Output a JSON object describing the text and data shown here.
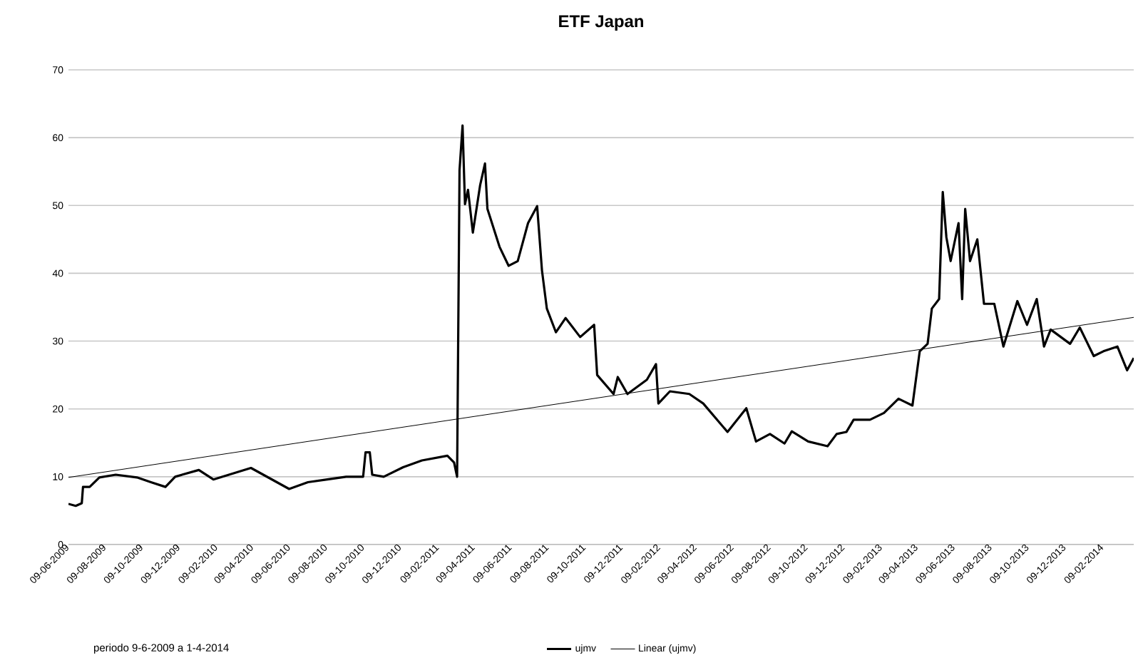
{
  "chart_data": {
    "type": "line",
    "title": "ETF Japan",
    "xlim": [
      "2009-06-09",
      "2014-04-01"
    ],
    "ylim": [
      0,
      70
    ],
    "yticks": [
      0,
      10,
      20,
      30,
      40,
      50,
      60,
      70
    ],
    "xticks": [
      {
        "value": "2009-06-09",
        "label": "09-06-2009"
      },
      {
        "value": "2009-08-09",
        "label": "09-08-2009"
      },
      {
        "value": "2009-10-09",
        "label": "09-10-2009"
      },
      {
        "value": "2009-12-09",
        "label": "09-12-2009"
      },
      {
        "value": "2010-02-09",
        "label": "09-02-2010"
      },
      {
        "value": "2010-04-09",
        "label": "09-04-2010"
      },
      {
        "value": "2010-06-09",
        "label": "09-06-2010"
      },
      {
        "value": "2010-08-09",
        "label": "09-08-2010"
      },
      {
        "value": "2010-10-09",
        "label": "09-10-2010"
      },
      {
        "value": "2010-12-09",
        "label": "09-12-2010"
      },
      {
        "value": "2011-02-09",
        "label": "09-02-2011"
      },
      {
        "value": "2011-04-09",
        "label": "09-04-2011"
      },
      {
        "value": "2011-06-09",
        "label": "09-06-2011"
      },
      {
        "value": "2011-08-09",
        "label": "09-08-2011"
      },
      {
        "value": "2011-10-09",
        "label": "09-10-2011"
      },
      {
        "value": "2011-12-09",
        "label": "09-12-2011"
      },
      {
        "value": "2012-02-09",
        "label": "09-02-2012"
      },
      {
        "value": "2012-04-09",
        "label": "09-04-2012"
      },
      {
        "value": "2012-06-09",
        "label": "09-06-2012"
      },
      {
        "value": "2012-08-09",
        "label": "09-08-2012"
      },
      {
        "value": "2012-10-09",
        "label": "09-10-2012"
      },
      {
        "value": "2012-12-09",
        "label": "09-12-2012"
      },
      {
        "value": "2013-02-09",
        "label": "09-02-2013"
      },
      {
        "value": "2013-04-09",
        "label": "09-04-2013"
      },
      {
        "value": "2013-06-09",
        "label": "09-06-2013"
      },
      {
        "value": "2013-08-09",
        "label": "09-08-2013"
      },
      {
        "value": "2013-10-09",
        "label": "09-10-2013"
      },
      {
        "value": "2013-12-09",
        "label": "09-12-2013"
      },
      {
        "value": "2014-02-09",
        "label": "09-02-2014"
      }
    ],
    "grid": "y",
    "legend": "bottom",
    "line_style": "solid",
    "annotations": [
      "periodo 9-6-2009 a 1-4-2014"
    ],
    "series": [
      {
        "name": "ujmv",
        "color": "#000000",
        "x": [
          "2009-06-09",
          "2009-06-21",
          "2009-07-01",
          "2009-07-03",
          "2009-07-14",
          "2009-07-30",
          "2009-08-26",
          "2009-09-30",
          "2009-10-23",
          "2009-11-16",
          "2009-12-02",
          "2010-01-10",
          "2010-02-03",
          "2010-04-06",
          "2010-06-08",
          "2010-07-09",
          "2010-08-10",
          "2010-09-10",
          "2010-10-08",
          "2010-10-12",
          "2010-10-19",
          "2010-10-23",
          "2010-11-11",
          "2010-12-13",
          "2011-01-13",
          "2011-02-24",
          "2011-03-07",
          "2011-03-12",
          "2011-03-16",
          "2011-03-21",
          "2011-03-25",
          "2011-03-30",
          "2011-04-07",
          "2011-04-19",
          "2011-04-27",
          "2011-05-01",
          "2011-05-21",
          "2011-06-05",
          "2011-06-20",
          "2011-07-07",
          "2011-07-22",
          "2011-07-30",
          "2011-08-07",
          "2011-08-22",
          "2011-09-07",
          "2011-10-01",
          "2011-10-24",
          "2011-10-29",
          "2011-11-25",
          "2011-12-02",
          "2011-12-18",
          "2012-01-19",
          "2012-02-03",
          "2012-02-07",
          "2012-02-26",
          "2012-03-29",
          "2012-04-21",
          "2012-05-31",
          "2012-07-01",
          "2012-07-17",
          "2012-08-09",
          "2012-09-02",
          "2012-09-14",
          "2012-10-11",
          "2012-11-12",
          "2012-11-27",
          "2012-12-13",
          "2012-12-25",
          "2013-01-21",
          "2013-02-13",
          "2013-03-09",
          "2013-04-01",
          "2013-04-13",
          "2013-04-26",
          "2013-05-03",
          "2013-05-15",
          "2013-05-21",
          "2013-05-27",
          "2013-06-03",
          "2013-06-16",
          "2013-06-22",
          "2013-06-27",
          "2013-07-05",
          "2013-07-17",
          "2013-07-28",
          "2013-08-14",
          "2013-08-29",
          "2013-09-21",
          "2013-10-07",
          "2013-10-23",
          "2013-11-04",
          "2013-11-15",
          "2013-12-17",
          "2014-01-02",
          "2014-01-25",
          "2014-02-10",
          "2014-03-05",
          "2014-03-21",
          "2014-04-01"
        ],
        "values": [
          6.0,
          5.7,
          6.1,
          8.5,
          8.5,
          9.9,
          10.3,
          9.9,
          9.2,
          8.5,
          10.0,
          11.0,
          9.6,
          11.3,
          8.2,
          9.2,
          9.6,
          10.0,
          10.0,
          13.6,
          13.6,
          10.3,
          10.0,
          11.4,
          12.4,
          13.1,
          12.1,
          10.0,
          55.2,
          61.8,
          50.2,
          52.3,
          46.0,
          53.0,
          56.2,
          49.5,
          43.9,
          41.1,
          41.8,
          47.4,
          49.9,
          40.4,
          34.8,
          31.3,
          33.4,
          30.6,
          32.4,
          25.0,
          22.2,
          24.7,
          22.2,
          24.3,
          26.6,
          20.8,
          22.6,
          22.2,
          20.8,
          16.6,
          20.1,
          15.2,
          16.3,
          14.9,
          16.7,
          15.2,
          14.5,
          16.3,
          16.6,
          18.4,
          18.4,
          19.4,
          21.5,
          20.5,
          28.5,
          29.6,
          34.8,
          36.2,
          52.0,
          45.3,
          41.8,
          47.4,
          36.2,
          49.5,
          41.8,
          45.0,
          35.5,
          35.5,
          29.2,
          35.9,
          32.4,
          36.2,
          29.2,
          31.7,
          29.6,
          32.0,
          27.8,
          28.5,
          29.2,
          25.7,
          27.5
        ]
      },
      {
        "name": "Linear (ujmv)",
        "type": "line",
        "color": "#000000",
        "x": [
          "2009-06-09",
          "2014-04-01"
        ],
        "values": [
          9.9,
          33.5
        ]
      }
    ]
  }
}
